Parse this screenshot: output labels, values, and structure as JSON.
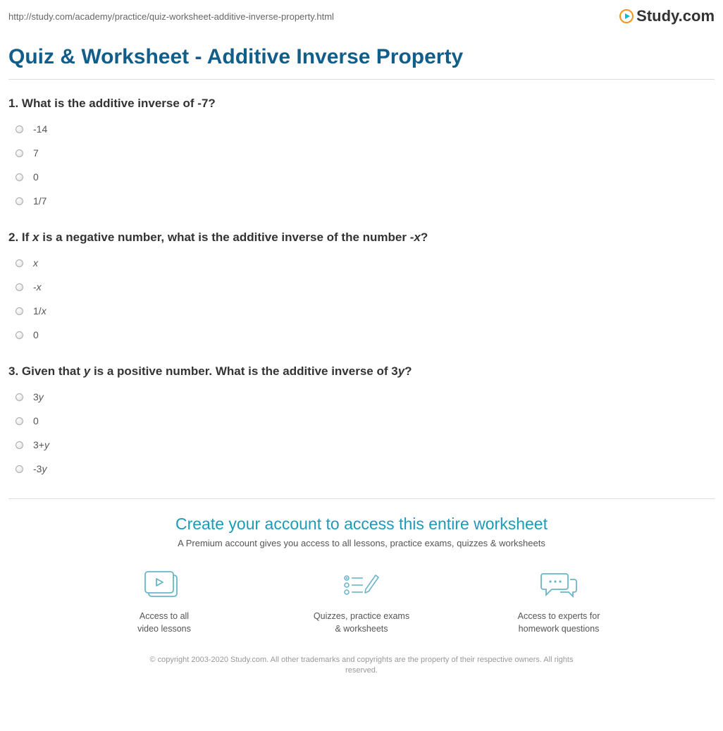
{
  "colors": {
    "heading": "#125e8a",
    "cta_heading": "#1c9bb8",
    "icon_stroke": "#6bb5c9",
    "text": "#333333",
    "muted": "#666666",
    "rule": "#dddddd",
    "logo_orange": "#f7931e",
    "logo_teal": "#00bcd4"
  },
  "url": "http://study.com/academy/practice/quiz-worksheet-additive-inverse-property.html",
  "brand": "Study.com",
  "title": "Quiz & Worksheet - Additive Inverse Property",
  "questions": [
    {
      "num": "1.",
      "parts": [
        {
          "t": " What is the additive inverse of -7?",
          "i": false
        }
      ],
      "options": [
        [
          {
            "t": "-14",
            "i": false
          }
        ],
        [
          {
            "t": "7",
            "i": false
          }
        ],
        [
          {
            "t": "0",
            "i": false
          }
        ],
        [
          {
            "t": "1/7",
            "i": false
          }
        ]
      ]
    },
    {
      "num": "2.",
      "parts": [
        {
          "t": " If ",
          "i": false
        },
        {
          "t": "x",
          "i": true
        },
        {
          "t": " is a negative number, what is the additive inverse of the number -",
          "i": false
        },
        {
          "t": "x",
          "i": true
        },
        {
          "t": "?",
          "i": false
        }
      ],
      "options": [
        [
          {
            "t": "x",
            "i": true
          }
        ],
        [
          {
            "t": "-",
            "i": false
          },
          {
            "t": "x",
            "i": true
          }
        ],
        [
          {
            "t": "1/",
            "i": false
          },
          {
            "t": "x",
            "i": true
          }
        ],
        [
          {
            "t": "0",
            "i": false
          }
        ]
      ]
    },
    {
      "num": "3.",
      "parts": [
        {
          "t": " Given that ",
          "i": false
        },
        {
          "t": "y",
          "i": true
        },
        {
          "t": " is a positive number. What is the additive inverse of 3",
          "i": false
        },
        {
          "t": "y",
          "i": true
        },
        {
          "t": "?",
          "i": false
        }
      ],
      "options": [
        [
          {
            "t": "3",
            "i": false
          },
          {
            "t": "y",
            "i": true
          }
        ],
        [
          {
            "t": "0",
            "i": false
          }
        ],
        [
          {
            "t": "3+",
            "i": false
          },
          {
            "t": "y",
            "i": true
          }
        ],
        [
          {
            "t": "-3",
            "i": false
          },
          {
            "t": "y",
            "i": true
          }
        ]
      ]
    }
  ],
  "cta": {
    "title": "Create your account to access this entire worksheet",
    "sub": "A Premium account gives you access to all lessons, practice exams, quizzes & worksheets",
    "benefits": [
      {
        "line1": "Access to all",
        "line2": "video lessons",
        "icon": "video"
      },
      {
        "line1": "Quizzes, practice exams",
        "line2": "& worksheets",
        "icon": "quiz"
      },
      {
        "line1": "Access to experts for",
        "line2": "homework questions",
        "icon": "chat"
      }
    ]
  },
  "copyright": "© copyright 2003-2020 Study.com. All other trademarks and copyrights are the property of their respective owners. All rights reserved."
}
